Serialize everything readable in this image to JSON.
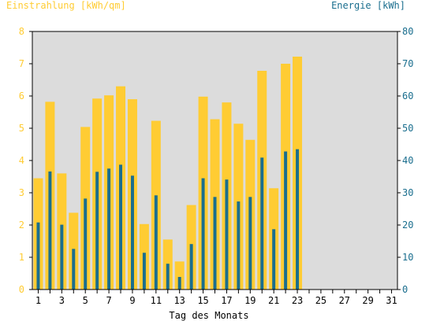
{
  "chart_data": {
    "type": "bar",
    "left_axis_label": "Einstrahlung [kWh/qm]",
    "right_axis_label": "Energie [kWh]",
    "xlabel": "Tag des Monats",
    "x": [
      1,
      2,
      3,
      4,
      5,
      6,
      7,
      8,
      9,
      10,
      11,
      12,
      13,
      14,
      15,
      16,
      17,
      18,
      19,
      20,
      21,
      22,
      23
    ],
    "x_ticks": [
      "1",
      "3",
      "5",
      "7",
      "9",
      "11",
      "13",
      "15",
      "17",
      "19",
      "21",
      "23",
      "25",
      "27",
      "29",
      "31"
    ],
    "x_range": [
      1,
      31
    ],
    "y_left_ticks": [
      "0",
      "1",
      "2",
      "3",
      "4",
      "5",
      "6",
      "7",
      "8"
    ],
    "y_left_range": [
      0,
      8
    ],
    "y_right_ticks": [
      "0",
      "10",
      "20",
      "30",
      "40",
      "50",
      "60",
      "70",
      "80"
    ],
    "y_right_range": [
      0,
      80
    ],
    "grid": false,
    "series": [
      {
        "name": "Einstrahlung [kWh/qm]",
        "axis": "left",
        "color": "#ffcc33",
        "values": [
          3.45,
          5.82,
          3.6,
          2.38,
          5.04,
          5.92,
          6.02,
          6.3,
          5.9,
          2.03,
          5.23,
          1.55,
          0.87,
          2.62,
          5.98,
          5.28,
          5.8,
          5.14,
          4.64,
          6.78,
          3.14,
          7.0,
          7.22
        ]
      },
      {
        "name": "Energie [kWh]",
        "axis": "right",
        "color": "#1a6e8e",
        "values": [
          20.8,
          36.6,
          20.1,
          12.6,
          28.2,
          36.5,
          37.5,
          38.7,
          35.3,
          11.4,
          29.2,
          8.0,
          3.9,
          14.1,
          34.5,
          28.7,
          34.1,
          27.3,
          28.7,
          40.9,
          18.7,
          42.8,
          43.5
        ]
      }
    ]
  }
}
